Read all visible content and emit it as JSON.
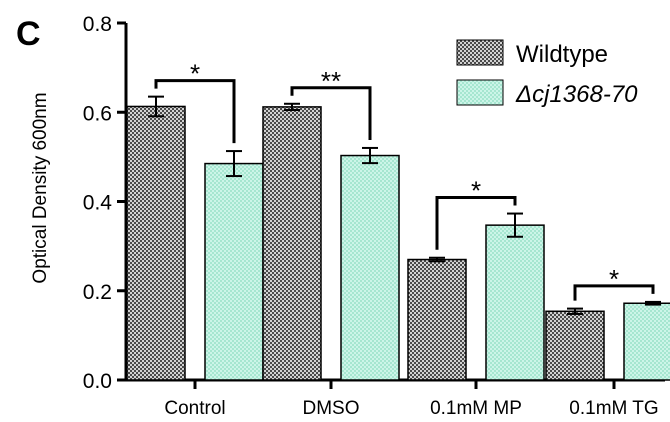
{
  "panel_label": "C",
  "chart_data": {
    "type": "bar",
    "ylabel": "Optical Density 600nm",
    "xlabel": "",
    "ylim": [
      0,
      0.8
    ],
    "yticks": [
      "0.0",
      "0.2",
      "0.4",
      "0.6",
      "0.8"
    ],
    "categories": [
      "Control",
      "DMSO",
      "0.1mM MP",
      "0.1mM TG"
    ],
    "series": [
      {
        "name": "Wildtype",
        "pattern": "checkered",
        "color": "#8c8c8c",
        "values": [
          0.613,
          0.612,
          0.27,
          0.154
        ],
        "errors": [
          0.022,
          0.007,
          0.004,
          0.006
        ]
      },
      {
        "name": "Δcj1368-70",
        "pattern": "mint-dotted",
        "color": "#b7efdc",
        "values": [
          0.485,
          0.503,
          0.347,
          0.172
        ],
        "errors": [
          0.028,
          0.017,
          0.026,
          0.003
        ]
      }
    ],
    "significance": [
      "*",
      "**",
      "*",
      "*"
    ],
    "legend_position": "top-right",
    "grid": false
  }
}
